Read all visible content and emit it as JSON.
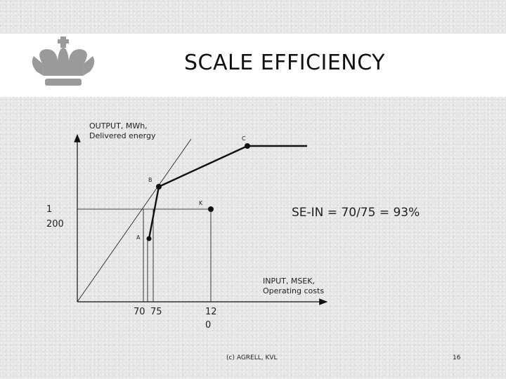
{
  "slide": {
    "title": "SCALE EFFICIENCY",
    "credit": "(c) AGRELL, KVL",
    "page": "16",
    "logo": "royal-crown-icon"
  },
  "diagram": {
    "y_axis_label_line1": "OUTPUT, MWh,",
    "y_axis_label_line2": "Delivered energy",
    "x_axis_label_line1": "INPUT, MSEK,",
    "x_axis_label_line2": "Operating costs",
    "y_tick_line1": "1",
    "y_tick_line2": "200",
    "x_tick_70": "70",
    "x_tick_75": "75",
    "x_tick_120_line1": "12",
    "x_tick_120_line2": "0",
    "point_a": "A",
    "point_b": "B",
    "point_c": "C",
    "point_k": "K",
    "formula": "SE-IN = 70/75 = 93%"
  },
  "colors": {
    "ink": "#111111",
    "title_band": "#ffffff",
    "background": "#e6e6e6"
  }
}
